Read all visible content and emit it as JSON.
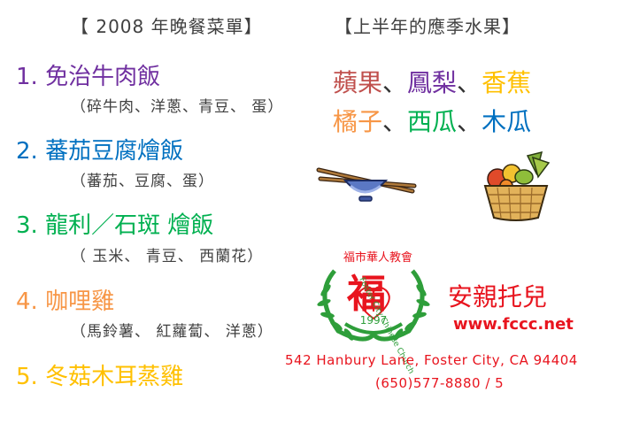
{
  "menu": {
    "title": "【 2008 年晚餐菜單】",
    "items": [
      {
        "label": "1. 免治牛肉飯",
        "color": "#7030a0",
        "sub": "（碎牛肉、洋蔥、青豆、 蛋）"
      },
      {
        "label": "2. 蕃茄豆腐燴飯",
        "color": "#0070c0",
        "sub": "（蕃茄、豆腐、蛋）"
      },
      {
        "label": "3. 龍利／石斑 燴飯",
        "color": "#00b050",
        "sub": "（ 玉米、 青豆、 西蘭花）"
      },
      {
        "label": "4.  咖哩雞",
        "color": "#f79646",
        "sub": "（馬鈴薯、 紅蘿蔔、 洋蔥）"
      },
      {
        "label": "5.  冬菇木耳蒸雞",
        "color": "#ffc000",
        "sub": ""
      }
    ]
  },
  "fruits": {
    "title": "【上半年的應季水果】",
    "row1": [
      {
        "text": "蘋果",
        "color": "#c0504d"
      },
      {
        "text": "、",
        "color": "#333333"
      },
      {
        "text": "鳳梨",
        "color": "#7030a0"
      },
      {
        "text": "、",
        "color": "#333333"
      },
      {
        "text": "香蕉",
        "color": "#ffc000"
      }
    ],
    "row2": [
      {
        "text": "橘子",
        "color": "#f79646"
      },
      {
        "text": "、",
        "color": "#333333"
      },
      {
        "text": "西瓜",
        "color": "#00b050"
      },
      {
        "text": "、",
        "color": "#333333"
      },
      {
        "text": "木瓜",
        "color": "#0070c0"
      }
    ]
  },
  "icons": [
    "bowl-chopsticks-icon",
    "fruit-basket-icon"
  ],
  "church": {
    "logo_char": "福",
    "logo_top": "福市華人教會",
    "logo_ring": "Foster City Chinese Church",
    "year": "1997",
    "brand": "安親托兒",
    "website": "www.fccc.net",
    "address": "542 Hanbury Lane, Foster City, CA 94404",
    "phone": "(650)577-8880 / 5",
    "color": "#e8141e",
    "leaf_color": "#2e9e3a"
  }
}
